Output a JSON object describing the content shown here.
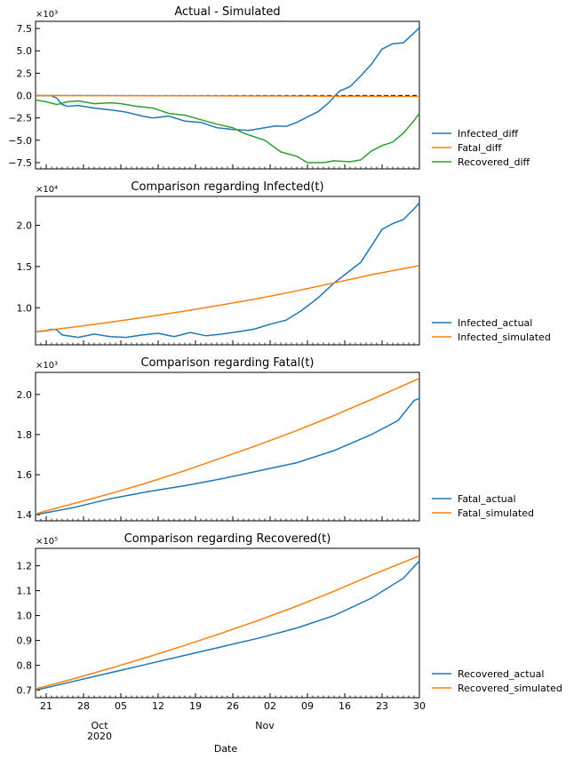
{
  "figure": {
    "xlabel": "Date",
    "x_ticks": [
      "21",
      "28",
      "05",
      "12",
      "19",
      "26",
      "02",
      "09",
      "16",
      "23",
      "30"
    ],
    "x_month_labels": [
      "Oct",
      "Nov"
    ],
    "x_year_label": "2020",
    "x_range": [
      "2020-09-19",
      "2020-11-30"
    ]
  },
  "chart_data": [
    {
      "type": "line",
      "title": "Actual - Simulated",
      "exponent_label": "×10³",
      "y_ticks": [
        "7.5",
        "5.0",
        "2.5",
        "0.0",
        "−2.5",
        "−5.0",
        "−7.5"
      ],
      "y_tick_values": [
        7500,
        5000,
        2500,
        0,
        -2500,
        -5000,
        -7500
      ],
      "ylim": [
        -8200,
        8300
      ],
      "reference_line": {
        "y": 0,
        "style": "dashed",
        "color": "#000000"
      },
      "series": [
        {
          "name": "Infected_diff",
          "color": "#1f77b4",
          "points": [
            [
              "2020-09-19",
              0
            ],
            [
              "2020-09-22",
              -30
            ],
            [
              "2020-09-23",
              -300
            ],
            [
              "2020-09-24",
              -1000
            ],
            [
              "2020-09-25",
              -1200
            ],
            [
              "2020-09-27",
              -1100
            ],
            [
              "2020-09-30",
              -1400
            ],
            [
              "2020-10-03",
              -1600
            ],
            [
              "2020-10-06",
              -1850
            ],
            [
              "2020-10-09",
              -2300
            ],
            [
              "2020-10-11",
              -2500
            ],
            [
              "2020-10-14",
              -2300
            ],
            [
              "2020-10-17",
              -2850
            ],
            [
              "2020-10-20",
              -3000
            ],
            [
              "2020-10-23",
              -3600
            ],
            [
              "2020-10-26",
              -3800
            ],
            [
              "2020-10-29",
              -3900
            ],
            [
              "2020-11-01",
              -3600
            ],
            [
              "2020-11-03",
              -3400
            ],
            [
              "2020-11-05",
              -3450
            ],
            [
              "2020-11-07",
              -3000
            ],
            [
              "2020-11-09",
              -2400
            ],
            [
              "2020-11-11",
              -1800
            ],
            [
              "2020-11-13",
              -800
            ],
            [
              "2020-11-15",
              500
            ],
            [
              "2020-11-17",
              1000
            ],
            [
              "2020-11-19",
              2200
            ],
            [
              "2020-11-21",
              3500
            ],
            [
              "2020-11-23",
              5200
            ],
            [
              "2020-11-25",
              5800
            ],
            [
              "2020-11-27",
              5900
            ],
            [
              "2020-11-29",
              7000
            ],
            [
              "2020-11-30",
              7600
            ]
          ]
        },
        {
          "name": "Fatal_diff",
          "color": "#ff7f0e",
          "points": [
            [
              "2020-09-19",
              0
            ],
            [
              "2020-10-15",
              -20
            ],
            [
              "2020-11-10",
              -60
            ],
            [
              "2020-11-30",
              -100
            ]
          ]
        },
        {
          "name": "Recovered_diff",
          "color": "#2ca02c",
          "points": [
            [
              "2020-09-19",
              -500
            ],
            [
              "2020-09-21",
              -700
            ],
            [
              "2020-09-23",
              -1000
            ],
            [
              "2020-09-25",
              -700
            ],
            [
              "2020-09-27",
              -600
            ],
            [
              "2020-09-30",
              -900
            ],
            [
              "2020-10-03",
              -800
            ],
            [
              "2020-10-05",
              -900
            ],
            [
              "2020-10-08",
              -1200
            ],
            [
              "2020-10-11",
              -1400
            ],
            [
              "2020-10-14",
              -2000
            ],
            [
              "2020-10-17",
              -2200
            ],
            [
              "2020-10-20",
              -2700
            ],
            [
              "2020-10-23",
              -3200
            ],
            [
              "2020-10-26",
              -3600
            ],
            [
              "2020-10-28",
              -4200
            ],
            [
              "2020-11-01",
              -5000
            ],
            [
              "2020-11-04",
              -6300
            ],
            [
              "2020-11-07",
              -6800
            ],
            [
              "2020-11-09",
              -7500
            ],
            [
              "2020-11-12",
              -7500
            ],
            [
              "2020-11-14",
              -7300
            ],
            [
              "2020-11-17",
              -7400
            ],
            [
              "2020-11-19",
              -7200
            ],
            [
              "2020-11-21",
              -6200
            ],
            [
              "2020-11-23",
              -5600
            ],
            [
              "2020-11-25",
              -5200
            ],
            [
              "2020-11-27",
              -4200
            ],
            [
              "2020-11-29",
              -2800
            ],
            [
              "2020-11-30",
              -2000
            ]
          ]
        }
      ]
    },
    {
      "type": "line",
      "title": "Comparison regarding Infected(t)",
      "exponent_label": "×10⁴",
      "y_ticks": [
        "2.0",
        "1.5",
        "1.0"
      ],
      "y_tick_values": [
        20000,
        15000,
        10000
      ],
      "ylim": [
        5500,
        23500
      ],
      "series": [
        {
          "name": "Infected_actual",
          "color": "#1f77b4",
          "points": [
            [
              "2020-09-19",
              7100
            ],
            [
              "2020-09-21",
              7200
            ],
            [
              "2020-09-22",
              7400
            ],
            [
              "2020-09-23",
              7300
            ],
            [
              "2020-09-24",
              6700
            ],
            [
              "2020-09-27",
              6400
            ],
            [
              "2020-09-30",
              6800
            ],
            [
              "2020-10-03",
              6500
            ],
            [
              "2020-10-06",
              6400
            ],
            [
              "2020-10-09",
              6700
            ],
            [
              "2020-10-12",
              6900
            ],
            [
              "2020-10-15",
              6500
            ],
            [
              "2020-10-18",
              7000
            ],
            [
              "2020-10-21",
              6600
            ],
            [
              "2020-10-24",
              6800
            ],
            [
              "2020-10-27",
              7100
            ],
            [
              "2020-10-30",
              7400
            ],
            [
              "2020-11-02",
              8000
            ],
            [
              "2020-11-05",
              8500
            ],
            [
              "2020-11-08",
              9700
            ],
            [
              "2020-11-11",
              11200
            ],
            [
              "2020-11-14",
              13000
            ],
            [
              "2020-11-16",
              14000
            ],
            [
              "2020-11-19",
              15500
            ],
            [
              "2020-11-21",
              17500
            ],
            [
              "2020-11-23",
              19500
            ],
            [
              "2020-11-25",
              20200
            ],
            [
              "2020-11-27",
              20700
            ],
            [
              "2020-11-29",
              22000
            ],
            [
              "2020-11-30",
              22700
            ]
          ]
        },
        {
          "name": "Infected_simulated",
          "color": "#ff7f0e",
          "points": [
            [
              "2020-09-19",
              7100
            ],
            [
              "2020-09-26",
              7650
            ],
            [
              "2020-10-03",
              8250
            ],
            [
              "2020-10-10",
              8900
            ],
            [
              "2020-10-17",
              9600
            ],
            [
              "2020-10-24",
              10350
            ],
            [
              "2020-10-31",
              11150
            ],
            [
              "2020-11-07",
              12050
            ],
            [
              "2020-11-14",
              13000
            ],
            [
              "2020-11-21",
              14000
            ],
            [
              "2020-11-30",
              15100
            ]
          ]
        }
      ]
    },
    {
      "type": "line",
      "title": "Comparison regarding Fatal(t)",
      "exponent_label": "×10³",
      "y_ticks": [
        "2.0",
        "1.8",
        "1.6",
        "1.4"
      ],
      "y_tick_values": [
        2000,
        1800,
        1600,
        1400
      ],
      "ylim": [
        1370,
        2110
      ],
      "series": [
        {
          "name": "Fatal_actual",
          "color": "#1f77b4",
          "points": [
            [
              "2020-09-19",
              1400
            ],
            [
              "2020-09-26",
              1435
            ],
            [
              "2020-10-03",
              1480
            ],
            [
              "2020-10-10",
              1515
            ],
            [
              "2020-10-17",
              1545
            ],
            [
              "2020-10-24",
              1580
            ],
            [
              "2020-10-31",
              1620
            ],
            [
              "2020-11-07",
              1660
            ],
            [
              "2020-11-14",
              1720
            ],
            [
              "2020-11-21",
              1800
            ],
            [
              "2020-11-26",
              1870
            ],
            [
              "2020-11-29",
              1970
            ],
            [
              "2020-11-30",
              1980
            ]
          ]
        },
        {
          "name": "Fatal_simulated",
          "color": "#ff7f0e",
          "points": [
            [
              "2020-09-19",
              1405
            ],
            [
              "2020-09-26",
              1455
            ],
            [
              "2020-10-03",
              1505
            ],
            [
              "2020-10-10",
              1560
            ],
            [
              "2020-10-17",
              1620
            ],
            [
              "2020-10-24",
              1685
            ],
            [
              "2020-10-31",
              1750
            ],
            [
              "2020-11-07",
              1820
            ],
            [
              "2020-11-14",
              1895
            ],
            [
              "2020-11-21",
              1975
            ],
            [
              "2020-11-30",
              2080
            ]
          ]
        }
      ]
    },
    {
      "type": "line",
      "title": "Comparison regarding Recovered(t)",
      "exponent_label": "×10⁵",
      "y_ticks": [
        "1.2",
        "1.1",
        "1.0",
        "0.9",
        "0.8",
        "0.7"
      ],
      "y_tick_values": [
        120000,
        110000,
        100000,
        90000,
        80000,
        70000
      ],
      "ylim": [
        67000,
        127000
      ],
      "series": [
        {
          "name": "Recovered_actual",
          "color": "#1f77b4",
          "points": [
            [
              "2020-09-19",
              70000
            ],
            [
              "2020-09-26",
              73500
            ],
            [
              "2020-10-03",
              77000
            ],
            [
              "2020-10-10",
              80500
            ],
            [
              "2020-10-17",
              84000
            ],
            [
              "2020-10-24",
              87500
            ],
            [
              "2020-10-31",
              91000
            ],
            [
              "2020-11-07",
              95000
            ],
            [
              "2020-11-14",
              100000
            ],
            [
              "2020-11-21",
              107000
            ],
            [
              "2020-11-27",
              115000
            ],
            [
              "2020-11-30",
              122000
            ]
          ]
        },
        {
          "name": "Recovered_simulated",
          "color": "#ff7f0e",
          "points": [
            [
              "2020-09-19",
              70500
            ],
            [
              "2020-09-26",
              74500
            ],
            [
              "2020-10-03",
              78800
            ],
            [
              "2020-10-10",
              83300
            ],
            [
              "2020-10-17",
              88000
            ],
            [
              "2020-10-24",
              93000
            ],
            [
              "2020-10-31",
              98200
            ],
            [
              "2020-11-07",
              103800
            ],
            [
              "2020-11-14",
              109800
            ],
            [
              "2020-11-21",
              116200
            ],
            [
              "2020-11-30",
              124000
            ]
          ]
        }
      ]
    }
  ]
}
